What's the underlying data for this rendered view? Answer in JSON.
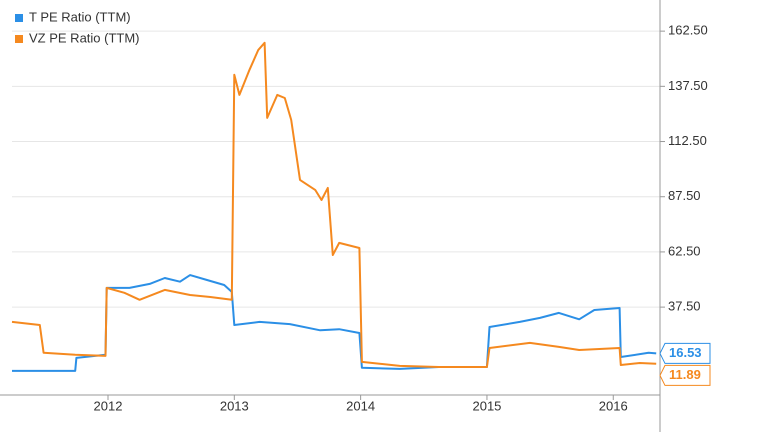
{
  "chart_data": {
    "type": "line",
    "series": [
      {
        "name": "T PE Ratio (TTM)",
        "color": "#2b8fe6",
        "x": [
          2011.24,
          2011.74,
          2011.75,
          2011.98,
          2011.99,
          2012.17,
          2012.33,
          2012.45,
          2012.57,
          2012.65,
          2012.77,
          2012.92,
          2012.98,
          2013.0,
          2013.2,
          2013.44,
          2013.68,
          2013.83,
          2013.99,
          2014.01,
          2014.31,
          2014.62,
          2015.0,
          2015.02,
          2015.26,
          2015.42,
          2015.57,
          2015.73,
          2015.85,
          2016.05,
          2016.06,
          2016.28,
          2016.34
        ],
        "values": [
          8.6,
          8.6,
          14.5,
          15.9,
          46.2,
          46.2,
          48,
          50.7,
          49,
          52,
          50,
          47.5,
          44.4,
          29.4,
          30.8,
          29.8,
          27,
          27.5,
          25.8,
          10,
          9.5,
          10.4,
          10.4,
          28.5,
          30.8,
          32.6,
          34.9,
          32,
          36.2,
          37.1,
          14.9,
          16.8,
          16.53
        ]
      },
      {
        "name": "VZ PE Ratio (TTM)",
        "color": "#f5891f",
        "x": [
          2011.24,
          2011.46,
          2011.49,
          2011.74,
          2011.98,
          2011.99,
          2012.13,
          2012.25,
          2012.45,
          2012.65,
          2012.81,
          2012.98,
          2013.0,
          2013.04,
          2013.12,
          2013.19,
          2013.24,
          2013.26,
          2013.34,
          2013.4,
          2013.45,
          2013.52,
          2013.64,
          2013.69,
          2013.74,
          2013.78,
          2013.83,
          2013.99,
          2014.01,
          2014.31,
          2014.62,
          2015.0,
          2015.02,
          2015.34,
          2015.57,
          2015.73,
          2016.05,
          2016.06,
          2016.21,
          2016.34
        ],
        "values": [
          30.8,
          29.4,
          16.8,
          15.9,
          15.4,
          46.2,
          44,
          40.8,
          45.3,
          43,
          42.1,
          40.8,
          142.7,
          133.6,
          145,
          154,
          157.2,
          123.2,
          133.6,
          132.2,
          122.3,
          95.1,
          90.6,
          86,
          91.5,
          61.1,
          66.6,
          64.3,
          12.7,
          10.9,
          10.4,
          10.4,
          19,
          21.3,
          19.5,
          18.1,
          19,
          11.3,
          12.2,
          11.89
        ]
      }
    ],
    "xlim": [
      2011.24,
      2016.37
    ],
    "xticks": [
      2012,
      2013,
      2014,
      2015,
      2016
    ],
    "ylim": [
      -2.3,
      176.6
    ],
    "yticks": [
      {
        "value": 37.5,
        "label": "37.50"
      },
      {
        "value": 62.5,
        "label": "62.50"
      },
      {
        "value": 87.5,
        "label": "87.50"
      },
      {
        "value": 112.5,
        "label": "112.50"
      },
      {
        "value": 137.5,
        "label": "137.50"
      },
      {
        "value": 162.5,
        "label": "162.50"
      }
    ],
    "grid": true,
    "legend": "top-left"
  }
}
